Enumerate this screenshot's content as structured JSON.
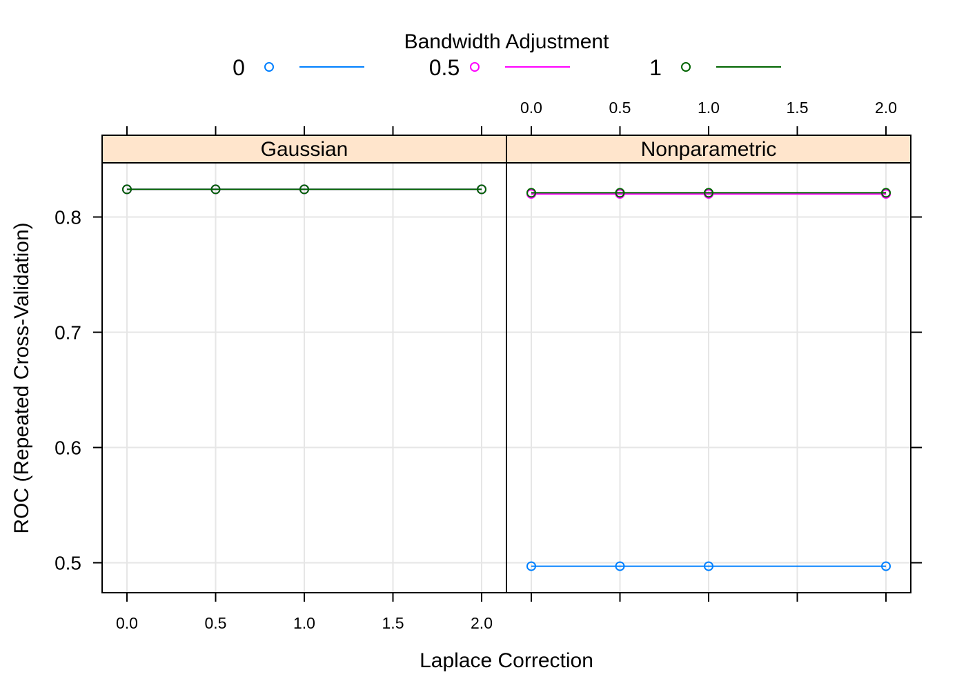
{
  "chart_data": {
    "type": "line",
    "xlabel": "Laplace Correction",
    "ylabel": "ROC (Repeated Cross-Validation)",
    "legend": {
      "title": "Bandwidth Adjustment",
      "placement": "top",
      "entries": [
        {
          "label": "0",
          "color": "#0080ff"
        },
        {
          "label": "0.5",
          "color": "#ff00ff"
        },
        {
          "label": "1",
          "color": "#006400"
        }
      ]
    },
    "x_ticks": [
      "0.0",
      "0.5",
      "1.0",
      "1.5",
      "2.0"
    ],
    "x_tick_values": [
      0,
      0.5,
      1,
      1.5,
      2
    ],
    "y_ticks": [
      "0.5",
      "0.6",
      "0.7",
      "0.8"
    ],
    "y_tick_values": [
      0.5,
      0.6,
      0.7,
      0.8
    ],
    "xlim": [
      -0.14,
      2.14
    ],
    "ylim": [
      0.474,
      0.847
    ],
    "grid": true,
    "panels": [
      {
        "strip": "Gaussian",
        "series": [
          {
            "name": "0",
            "color": "#0080ff",
            "x": [
              0,
              0.5,
              1,
              2
            ],
            "y": [
              0.824,
              0.824,
              0.824,
              0.824
            ]
          },
          {
            "name": "0.5",
            "color": "#ff00ff",
            "x": [
              0,
              0.5,
              1,
              2
            ],
            "y": [
              0.824,
              0.824,
              0.824,
              0.824
            ]
          },
          {
            "name": "1",
            "color": "#006400",
            "x": [
              0,
              0.5,
              1,
              2
            ],
            "y": [
              0.824,
              0.824,
              0.824,
              0.824
            ]
          }
        ]
      },
      {
        "strip": "Nonparametric",
        "series": [
          {
            "name": "0",
            "color": "#0080ff",
            "x": [
              0,
              0.5,
              1,
              2
            ],
            "y": [
              0.497,
              0.497,
              0.497,
              0.497
            ]
          },
          {
            "name": "0.5",
            "color": "#ff00ff",
            "x": [
              0,
              0.5,
              1,
              2
            ],
            "y": [
              0.82,
              0.82,
              0.82,
              0.82
            ]
          },
          {
            "name": "1",
            "color": "#006400",
            "x": [
              0,
              0.5,
              1,
              2
            ],
            "y": [
              0.821,
              0.821,
              0.821,
              0.821
            ]
          }
        ]
      }
    ]
  },
  "colors": {
    "strip_background": "#ffe5cc",
    "grid": "#e6e6e6"
  }
}
